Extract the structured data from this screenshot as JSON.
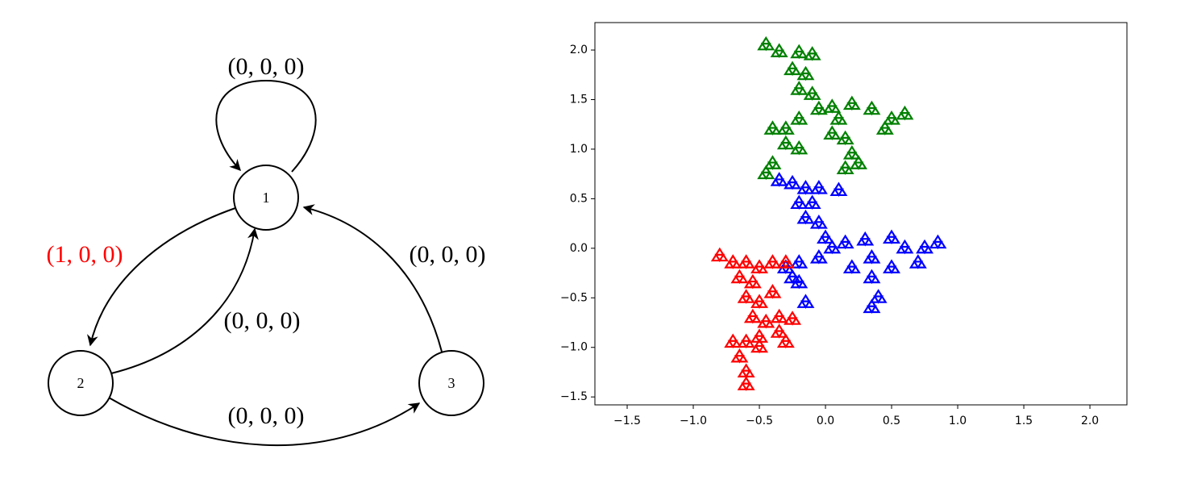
{
  "diagram": {
    "nodes": [
      {
        "label": "1"
      },
      {
        "label": "2"
      },
      {
        "label": "3"
      }
    ],
    "edges": [
      {
        "label": "(0, 0, 0)"
      },
      {
        "label": "(1, 0, 0)"
      },
      {
        "label": "(0, 0, 0)"
      },
      {
        "label": "(0, 0, 0)"
      },
      {
        "label": "(0, 0, 0)"
      }
    ]
  },
  "chart_data": {
    "type": "scatter",
    "xlim": [
      -1.744,
      2.28
    ],
    "ylim": [
      -1.58,
      2.277
    ],
    "xticks": [
      {
        "value": -1.5,
        "label": "−1.5"
      },
      {
        "value": -1.0,
        "label": "−1.0"
      },
      {
        "value": -0.5,
        "label": "−0.5"
      },
      {
        "value": 0,
        "label": "0.0"
      },
      {
        "value": 0.5,
        "label": "0.5"
      },
      {
        "value": 1.0,
        "label": "1.0"
      },
      {
        "value": 1.5,
        "label": "1.5"
      },
      {
        "value": 2.0,
        "label": "2.0"
      }
    ],
    "yticks": [
      {
        "value": -1.5,
        "label": "−1.5"
      },
      {
        "value": -1.0,
        "label": "−1.0"
      },
      {
        "value": -0.5,
        "label": "−0.5"
      },
      {
        "value": 0,
        "label": "0.0"
      },
      {
        "value": 0.5,
        "label": "0.5"
      },
      {
        "value": 1.0,
        "label": "1.0"
      },
      {
        "value": 1.5,
        "label": "1.5"
      },
      {
        "value": 2.0,
        "label": "2.0"
      }
    ],
    "series": [
      {
        "color": "#008000",
        "x": [
          -0.45,
          -0.35,
          -0.2,
          -0.1,
          -0.25,
          -0.15,
          -0.2,
          -0.1,
          -0.05,
          0.05,
          0.2,
          0.35,
          0.5,
          0.6,
          0.45,
          -0.3,
          -0.4,
          -0.3,
          -0.2,
          -0.4,
          -0.45,
          0.05,
          0.15,
          0.2,
          0.15,
          0.25,
          0.1,
          -0.2
        ],
        "y": [
          2.05,
          1.98,
          1.97,
          1.95,
          1.8,
          1.75,
          1.6,
          1.55,
          1.4,
          1.42,
          1.45,
          1.4,
          1.3,
          1.35,
          1.2,
          1.2,
          1.2,
          1.05,
          1.0,
          0.85,
          0.75,
          1.15,
          1.1,
          0.95,
          0.8,
          0.85,
          1.3,
          1.3
        ]
      },
      {
        "color": "#0000ff",
        "x": [
          -0.35,
          -0.25,
          -0.15,
          -0.05,
          0.1,
          -0.2,
          -0.1,
          -0.15,
          -0.05,
          0,
          0.05,
          0.15,
          0.3,
          0.5,
          0.6,
          0.75,
          0.85,
          0.7,
          0.5,
          0.35,
          0.35,
          0.4,
          0.35,
          0.2,
          -0.05,
          -0.2,
          -0.3,
          -0.2,
          -0.15,
          -0.25
        ],
        "y": [
          0.68,
          0.65,
          0.6,
          0.6,
          0.58,
          0.45,
          0.45,
          0.3,
          0.25,
          0.1,
          0,
          0.05,
          0.08,
          0.1,
          0,
          0,
          0.05,
          -0.15,
          -0.2,
          -0.1,
          -0.3,
          -0.5,
          -0.6,
          -0.2,
          -0.1,
          -0.15,
          -0.2,
          -0.35,
          -0.55,
          -0.3
        ]
      },
      {
        "color": "#ff0000",
        "x": [
          -0.8,
          -0.7,
          -0.6,
          -0.5,
          -0.4,
          -0.3,
          -0.65,
          -0.55,
          -0.6,
          -0.5,
          -0.55,
          -0.45,
          -0.35,
          -0.25,
          -0.35,
          -0.3,
          -0.5,
          -0.6,
          -0.7,
          -0.65,
          -0.6,
          -0.6,
          -0.5,
          -0.4
        ],
        "y": [
          -0.08,
          -0.15,
          -0.15,
          -0.2,
          -0.15,
          -0.15,
          -0.3,
          -0.35,
          -0.5,
          -0.55,
          -0.7,
          -0.75,
          -0.7,
          -0.72,
          -0.85,
          -0.95,
          -0.9,
          -0.95,
          -0.95,
          -1.1,
          -1.25,
          -1.38,
          -1.0,
          -0.45
        ]
      }
    ]
  }
}
